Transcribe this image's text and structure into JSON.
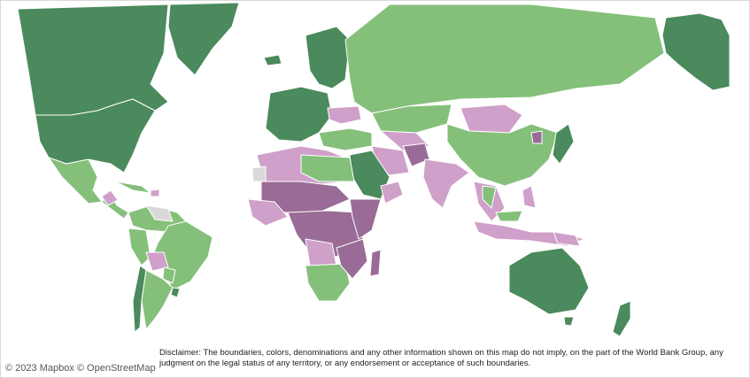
{
  "map": {
    "legend_colors": {
      "high": "#4a8a5c",
      "upper_middle": "#84c07a",
      "lower_middle": "#cfa0c9",
      "low": "#9a6b96",
      "no_data": "#d9d9d9",
      "ocean": "#ffffff",
      "border": "#ffffff"
    },
    "attribution": "© 2023 Mapbox  © OpenStreetMap",
    "disclaimer": "Disclaimer: The boundaries, colors, denominations and any other information shown on this map do not imply, on the part of the World Bank Group, any judgment on the legal status of any territory, or any endorsement or acceptance of such boundaries."
  }
}
